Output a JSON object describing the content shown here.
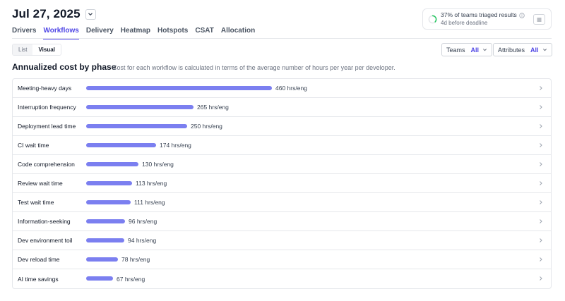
{
  "header": {
    "date": "Jul 27, 2025"
  },
  "tabs": [
    {
      "label": "Drivers",
      "active": false
    },
    {
      "label": "Workflows",
      "active": true
    },
    {
      "label": "Delivery",
      "active": false
    },
    {
      "label": "Heatmap",
      "active": false
    },
    {
      "label": "Hotspots",
      "active": false
    },
    {
      "label": "CSAT",
      "active": false
    },
    {
      "label": "Allocation",
      "active": false
    }
  ],
  "status": {
    "main": "37% of teams triaged results",
    "sub": "4d before deadline",
    "progress": 0.37
  },
  "view_toggle": {
    "list": "List",
    "visual": "Visual",
    "selected": "Visual"
  },
  "filters": {
    "teams": {
      "label": "Teams",
      "value": "All"
    },
    "attributes": {
      "label": "Attributes",
      "value": "All"
    }
  },
  "section": {
    "title": "Annualized cost by phase",
    "description": "Cost for each workflow is calculated in terms of the average number of hours per year per developer."
  },
  "colors": {
    "accent": "#4f46e5",
    "bar": "#7b7ff0",
    "ring_track": "#e5e7eb",
    "ring_progress": "#22c55e"
  },
  "unit": "hrs/eng",
  "rows": [
    {
      "label": "Meeting-heavy days",
      "value": 460,
      "display": "460 hrs/eng"
    },
    {
      "label": "Interruption frequency",
      "value": 265,
      "display": "265 hrs/eng"
    },
    {
      "label": "Deployment lead time",
      "value": 250,
      "display": "250 hrs/eng"
    },
    {
      "label": "CI wait time",
      "value": 174,
      "display": "174 hrs/eng"
    },
    {
      "label": "Code comprehension",
      "value": 130,
      "display": "130 hrs/eng"
    },
    {
      "label": "Review wait time",
      "value": 113,
      "display": "113 hrs/eng"
    },
    {
      "label": "Test wait time",
      "value": 111,
      "display": "111 hrs/eng"
    },
    {
      "label": "Information-seeking",
      "value": 96,
      "display": "96 hrs/eng"
    },
    {
      "label": "Dev environment toil",
      "value": 94,
      "display": "94 hrs/eng"
    },
    {
      "label": "Dev reload time",
      "value": 78,
      "display": "78 hrs/eng"
    },
    {
      "label": "AI time savings",
      "value": 67,
      "display": "67 hrs/eng"
    }
  ]
}
